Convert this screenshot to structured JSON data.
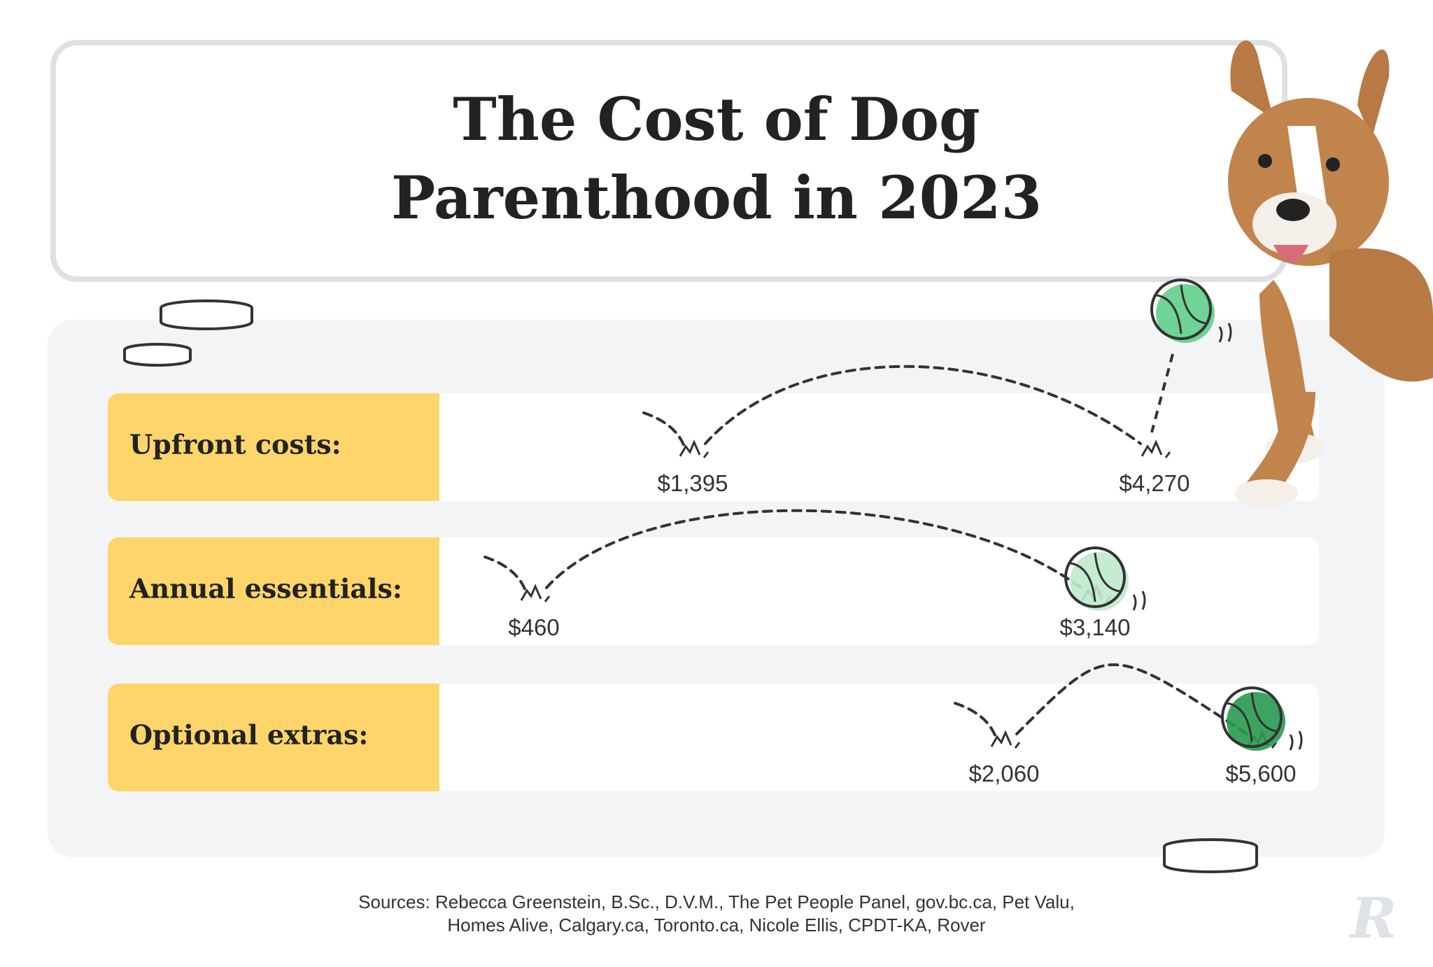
{
  "title_lines": [
    "The Cost of Dog",
    "Parenthood in 2023"
  ],
  "rows": [
    {
      "label": "Upfront costs:",
      "low": "$1,395",
      "high": "$4,270"
    },
    {
      "label": "Annual essentials:",
      "low": "$460",
      "high": "$3,140"
    },
    {
      "label": "Optional extras:",
      "low": "$2,060",
      "high": "$5,600"
    }
  ],
  "sources": [
    "Sources: Rebecca Greenstein, B.Sc., D.V.M., The Pet People Panel, gov.bc.ca, Pet Valu,",
    "Homes Alive, Calgary.ca, Toronto.ca, Nicole Ellis, CPDT-KA, Rover"
  ]
}
